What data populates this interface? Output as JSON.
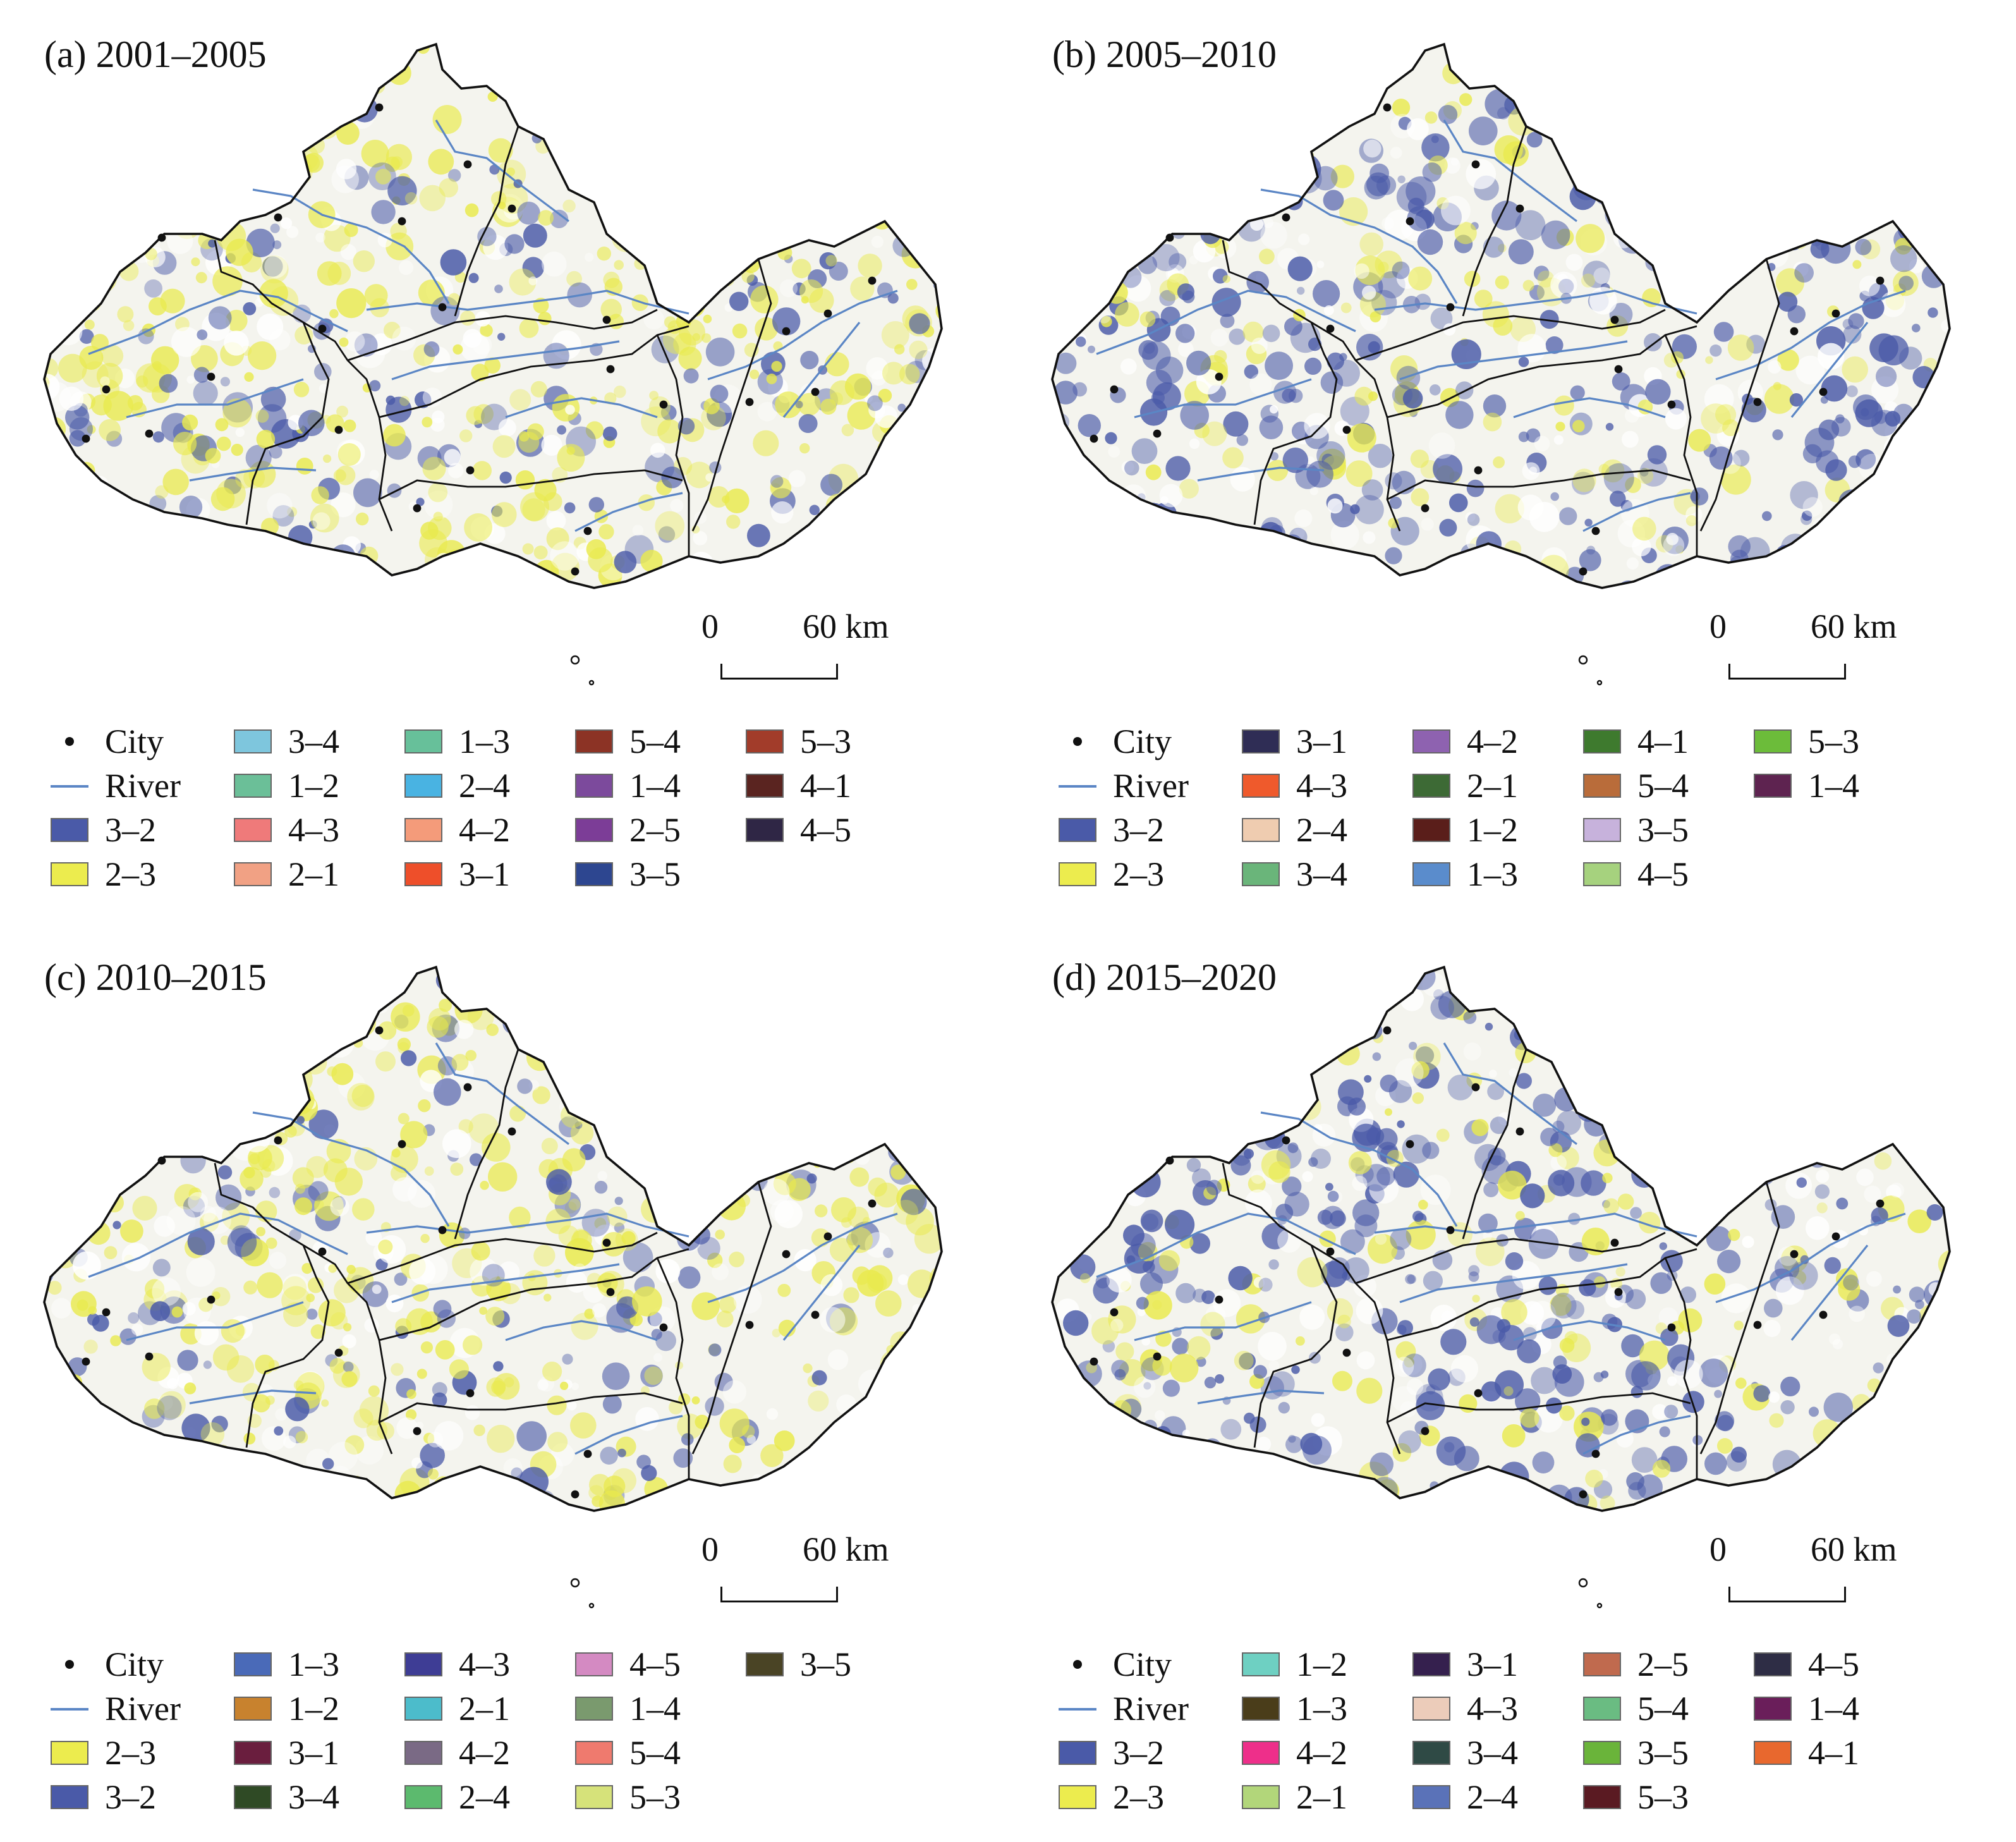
{
  "panels": [
    {
      "title": "(a) 2001–2005",
      "dominant": "#e9ea4e",
      "secondary": "#4a5aa8",
      "scale": {
        "zero": "0",
        "end": "60 km"
      },
      "legend": [
        {
          "label": "City",
          "kind": "dot"
        },
        {
          "label": "River",
          "kind": "line"
        },
        {
          "label": "3–2",
          "color": "#4a5aa8"
        },
        {
          "label": "2–3",
          "color": "#ecec4e"
        },
        {
          "label": "3–4",
          "color": "#7ec6dd"
        },
        {
          "label": "1–2",
          "color": "#6bbf98"
        },
        {
          "label": "4–3",
          "color": "#ef7a7a"
        },
        {
          "label": "2–1",
          "color": "#f1a184"
        },
        {
          "label": "1–3",
          "color": "#67c09a"
        },
        {
          "label": "2–4",
          "color": "#49b3e2"
        },
        {
          "label": "4–2",
          "color": "#f49b7a"
        },
        {
          "label": "3–1",
          "color": "#ee4f2a"
        },
        {
          "label": "5–4",
          "color": "#8c3325"
        },
        {
          "label": "1–4",
          "color": "#7c4a9c"
        },
        {
          "label": "2–5",
          "color": "#7c3d97"
        },
        {
          "label": "3–5",
          "color": "#2d4690"
        },
        {
          "label": "5–3",
          "color": "#a23c2a"
        },
        {
          "label": "4–1",
          "color": "#5a2420"
        },
        {
          "label": "4–5",
          "color": "#2f2645"
        }
      ]
    },
    {
      "title": "(b) 2005–2010",
      "dominant": "#4a5aa8",
      "secondary": "#e9ea4e",
      "scale": {
        "zero": "0",
        "end": "60 km"
      },
      "legend": [
        {
          "label": "City",
          "kind": "dot"
        },
        {
          "label": "River",
          "kind": "line"
        },
        {
          "label": "3–2",
          "color": "#4a5aa8"
        },
        {
          "label": "2–3",
          "color": "#ecec4e"
        },
        {
          "label": "3–1",
          "color": "#2f2d55"
        },
        {
          "label": "4–3",
          "color": "#ef5a2c"
        },
        {
          "label": "2–4",
          "color": "#efccb0"
        },
        {
          "label": "3–4",
          "color": "#6ab57a"
        },
        {
          "label": "4–2",
          "color": "#8e62b0"
        },
        {
          "label": "2–1",
          "color": "#3d6a35"
        },
        {
          "label": "1–2",
          "color": "#5a1e1a"
        },
        {
          "label": "1–3",
          "color": "#5a8ccc"
        },
        {
          "label": "4–1",
          "color": "#3e7a2e"
        },
        {
          "label": "5–4",
          "color": "#b96c3a"
        },
        {
          "label": "3–5",
          "color": "#c7b2dc"
        },
        {
          "label": "4–5",
          "color": "#a6d27e"
        },
        {
          "label": "5–3",
          "color": "#6cbc3a"
        },
        {
          "label": "1–4",
          "color": "#5e2350"
        }
      ]
    },
    {
      "title": "(c) 2010–2015",
      "dominant": "#e9ea4e",
      "secondary": "#4a5aa8",
      "scale": {
        "zero": "0",
        "end": "60 km"
      },
      "legend": [
        {
          "label": "City",
          "kind": "dot"
        },
        {
          "label": "River",
          "kind": "line"
        },
        {
          "label": "2–3",
          "color": "#ecec4e"
        },
        {
          "label": "3–2",
          "color": "#4a5aa8"
        },
        {
          "label": "1–3",
          "color": "#4a6ab8"
        },
        {
          "label": "1–2",
          "color": "#c8822e"
        },
        {
          "label": "3–1",
          "color": "#6a1e3e"
        },
        {
          "label": "3–4",
          "color": "#2f4a25"
        },
        {
          "label": "4–3",
          "color": "#3e3d95"
        },
        {
          "label": "2–1",
          "color": "#4cbccb"
        },
        {
          "label": "4–2",
          "color": "#7a6a85"
        },
        {
          "label": "2–4",
          "color": "#5cba6e"
        },
        {
          "label": "4–5",
          "color": "#d48ac2"
        },
        {
          "label": "1–4",
          "color": "#7a9a6e"
        },
        {
          "label": "5–4",
          "color": "#ef7a6e"
        },
        {
          "label": "5–3",
          "color": "#d6e27a"
        },
        {
          "label": "3–5",
          "color": "#4a4425"
        }
      ]
    },
    {
      "title": "(d) 2015–2020",
      "dominant": "#4a5aa8",
      "secondary": "#e9ea4e",
      "scale": {
        "zero": "0",
        "end": "60 km"
      },
      "legend": [
        {
          "label": "City",
          "kind": "dot"
        },
        {
          "label": "River",
          "kind": "line"
        },
        {
          "label": "3–2",
          "color": "#4a5aa8"
        },
        {
          "label": "2–3",
          "color": "#ecec4e"
        },
        {
          "label": "1–2",
          "color": "#6ed0c2"
        },
        {
          "label": "1–3",
          "color": "#4a3d1a"
        },
        {
          "label": "4–2",
          "color": "#ee2f8a"
        },
        {
          "label": "2–1",
          "color": "#b2d67a"
        },
        {
          "label": "3–1",
          "color": "#35204e"
        },
        {
          "label": "4–3",
          "color": "#ecccba"
        },
        {
          "label": "3–4",
          "color": "#2f4a45"
        },
        {
          "label": "2–4",
          "color": "#5a72b8"
        },
        {
          "label": "2–5",
          "color": "#c06a4e"
        },
        {
          "label": "5–4",
          "color": "#6abc82"
        },
        {
          "label": "3–5",
          "color": "#6ab43a"
        },
        {
          "label": "5–3",
          "color": "#5a1a22"
        },
        {
          "label": "4–5",
          "color": "#2e2d45"
        },
        {
          "label": "1–4",
          "color": "#6a1e5a"
        },
        {
          "label": "4–1",
          "color": "#e8682e"
        }
      ]
    }
  ]
}
